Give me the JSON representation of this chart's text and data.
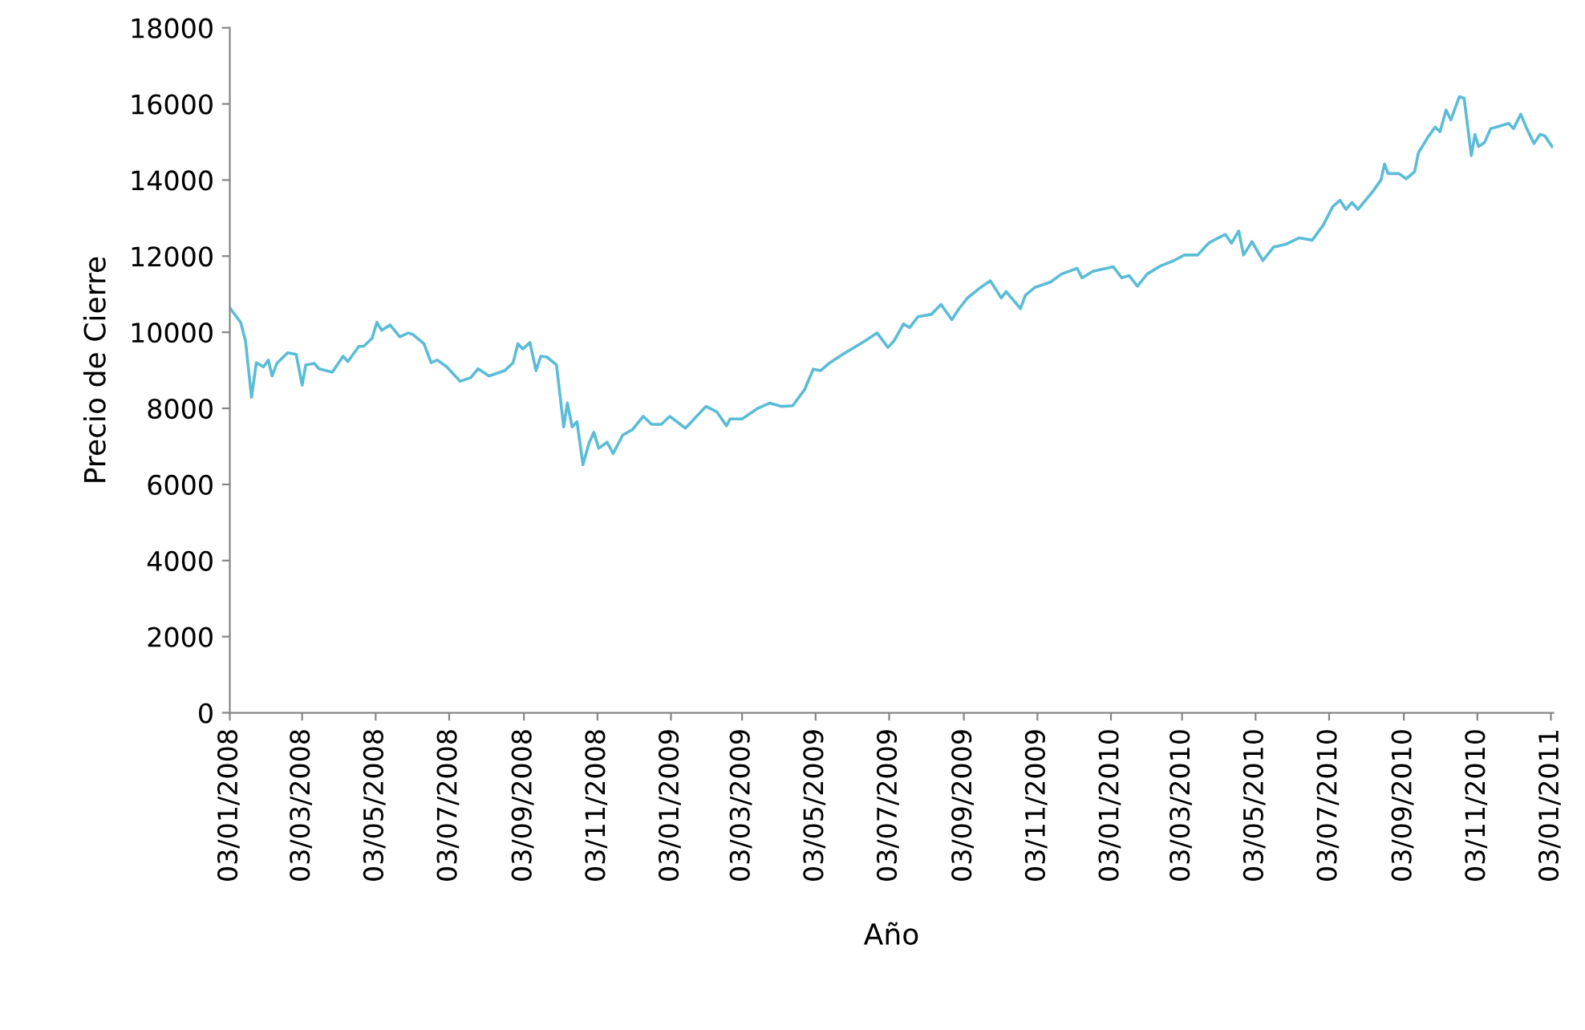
{
  "chart_data": {
    "type": "line",
    "xlabel": "Año",
    "ylabel": "Precio de Cierre",
    "xlim": [
      "2008-01-03",
      "2011-01-05"
    ],
    "ylim": [
      0,
      18000
    ],
    "yticks": [
      0,
      2000,
      4000,
      6000,
      8000,
      10000,
      12000,
      14000,
      16000,
      18000
    ],
    "xticks": [
      {
        "value": "2008-01-03",
        "label": "03/01/2008"
      },
      {
        "value": "2008-03-03",
        "label": "03/03/2008"
      },
      {
        "value": "2008-05-03",
        "label": "03/05/2008"
      },
      {
        "value": "2008-07-03",
        "label": "03/07/2008"
      },
      {
        "value": "2008-09-03",
        "label": "03/09/2008"
      },
      {
        "value": "2008-11-03",
        "label": "03/11/2008"
      },
      {
        "value": "2009-01-03",
        "label": "03/01/2009"
      },
      {
        "value": "2009-03-03",
        "label": "03/03/2009"
      },
      {
        "value": "2009-05-03",
        "label": "03/05/2009"
      },
      {
        "value": "2009-07-03",
        "label": "03/07/2009"
      },
      {
        "value": "2009-09-03",
        "label": "03/09/2009"
      },
      {
        "value": "2009-11-03",
        "label": "03/11/2009"
      },
      {
        "value": "2010-01-03",
        "label": "03/01/2010"
      },
      {
        "value": "2010-03-03",
        "label": "03/03/2010"
      },
      {
        "value": "2010-05-03",
        "label": "03/05/2010"
      },
      {
        "value": "2010-07-03",
        "label": "03/07/2010"
      },
      {
        "value": "2010-09-03",
        "label": "03/09/2010"
      },
      {
        "value": "2010-11-03",
        "label": "03/11/2010"
      },
      {
        "value": "2011-01-03",
        "label": "03/01/2011"
      }
    ],
    "marker": "none",
    "line_style": "solid",
    "x": [
      "2008-01-03",
      "2008-01-12",
      "2008-01-16",
      "2008-01-21",
      "2008-01-25",
      "2008-01-31",
      "2008-02-04",
      "2008-02-07",
      "2008-02-11",
      "2008-02-20",
      "2008-02-27",
      "2008-03-03",
      "2008-03-06",
      "2008-03-13",
      "2008-03-17",
      "2008-03-28",
      "2008-04-06",
      "2008-04-10",
      "2008-04-19",
      "2008-04-23",
      "2008-04-30",
      "2008-05-04",
      "2008-05-08",
      "2008-05-15",
      "2008-05-23",
      "2008-05-30",
      "2008-06-03",
      "2008-06-12",
      "2008-06-18",
      "2008-06-23",
      "2008-07-01",
      "2008-07-12",
      "2008-07-21",
      "2008-07-27",
      "2008-08-05",
      "2008-08-18",
      "2008-08-25",
      "2008-08-29",
      "2008-09-02",
      "2008-09-08",
      "2008-09-13",
      "2008-09-17",
      "2008-09-22",
      "2008-09-30",
      "2008-10-06",
      "2008-10-09",
      "2008-10-13",
      "2008-10-17",
      "2008-10-22",
      "2008-10-27",
      "2008-10-31",
      "2008-11-04",
      "2008-11-11",
      "2008-11-16",
      "2008-11-24",
      "2008-12-02",
      "2008-12-11",
      "2008-12-18",
      "2008-12-26",
      "2009-01-02",
      "2009-01-15",
      "2009-02-01",
      "2009-02-10",
      "2009-02-18",
      "2009-02-21",
      "2009-03-03",
      "2009-03-16",
      "2009-03-26",
      "2009-04-05",
      "2009-04-14",
      "2009-04-24",
      "2009-05-01",
      "2009-05-07",
      "2009-05-14",
      "2009-05-25",
      "2009-06-02",
      "2009-06-13",
      "2009-06-23",
      "2009-07-02",
      "2009-07-07",
      "2009-07-15",
      "2009-07-20",
      "2009-07-27",
      "2009-08-07",
      "2009-08-15",
      "2009-08-24",
      "2009-08-30",
      "2009-09-06",
      "2009-09-17",
      "2009-09-25",
      "2009-10-04",
      "2009-10-08",
      "2009-10-20",
      "2009-10-24",
      "2009-11-01",
      "2009-11-14",
      "2009-11-23",
      "2009-12-06",
      "2009-12-10",
      "2009-12-19",
      "2010-01-05",
      "2010-01-12",
      "2010-01-18",
      "2010-01-25",
      "2010-02-02",
      "2010-02-13",
      "2010-02-24",
      "2010-03-05",
      "2010-03-16",
      "2010-03-25",
      "2010-04-02",
      "2010-04-08",
      "2010-04-13",
      "2010-04-19",
      "2010-04-23",
      "2010-04-30",
      "2010-05-09",
      "2010-05-18",
      "2010-05-28",
      "2010-06-08",
      "2010-06-19",
      "2010-06-28",
      "2010-07-06",
      "2010-07-12",
      "2010-07-17",
      "2010-07-22",
      "2010-07-27",
      "2010-08-08",
      "2010-08-15",
      "2010-08-18",
      "2010-08-21",
      "2010-08-30",
      "2010-09-05",
      "2010-09-12",
      "2010-09-15",
      "2010-09-23",
      "2010-09-29",
      "2010-10-03",
      "2010-10-08",
      "2010-10-12",
      "2010-10-19",
      "2010-10-23",
      "2010-10-29",
      "2010-11-01",
      "2010-11-04",
      "2010-11-09",
      "2010-11-14",
      "2010-11-22",
      "2010-11-29",
      "2010-12-03",
      "2010-12-09",
      "2010-12-14",
      "2010-12-20",
      "2010-12-25",
      "2010-12-29",
      "2011-01-04"
    ],
    "series": [
      {
        "color": "#5bbcd6",
        "values": [
          10640,
          10260,
          9770,
          8290,
          9200,
          9090,
          9270,
          8850,
          9180,
          9460,
          9420,
          8610,
          9140,
          9180,
          9040,
          8950,
          9370,
          9230,
          9630,
          9630,
          9840,
          10260,
          10050,
          10190,
          9880,
          9980,
          9940,
          9700,
          9200,
          9270,
          9090,
          8710,
          8810,
          9040,
          8850,
          8990,
          9200,
          9700,
          9560,
          9730,
          8990,
          9370,
          9350,
          9140,
          7510,
          8140,
          7510,
          7650,
          6520,
          7090,
          7370,
          6950,
          7110,
          6810,
          7300,
          7440,
          7790,
          7580,
          7580,
          7790,
          7480,
          8050,
          7910,
          7540,
          7720,
          7720,
          8000,
          8140,
          8050,
          8070,
          8500,
          9030,
          8990,
          9180,
          9410,
          9560,
          9770,
          9980,
          9600,
          9770,
          10220,
          10120,
          10410,
          10470,
          10730,
          10330,
          10620,
          10900,
          11180,
          11350,
          10900,
          11070,
          10620,
          10970,
          11180,
          11320,
          11530,
          11680,
          11430,
          11600,
          11720,
          11430,
          11490,
          11210,
          11530,
          11740,
          11880,
          12030,
          12030,
          12340,
          12480,
          12570,
          12340,
          12660,
          12030,
          12380,
          11880,
          12240,
          12310,
          12480,
          12420,
          12810,
          13300,
          13470,
          13230,
          13410,
          13230,
          13690,
          14000,
          14420,
          14170,
          14170,
          14030,
          14220,
          14710,
          15130,
          15390,
          15270,
          15840,
          15580,
          16190,
          16150,
          14640,
          15200,
          14880,
          14990,
          15350,
          15420,
          15490,
          15350,
          15730,
          15350,
          14960,
          15200,
          15160,
          14880
        ]
      }
    ]
  }
}
